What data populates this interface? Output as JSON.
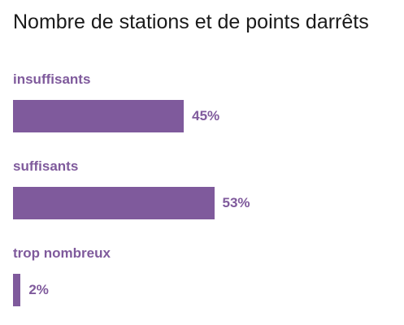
{
  "title": "Nombre de stations et de points darrêts",
  "colors": {
    "bar": "#7f5a9c",
    "label": "#7f5a9c",
    "value": "#7f5a9c",
    "title": "#1a1a1a"
  },
  "chart_data": {
    "type": "bar",
    "orientation": "horizontal",
    "title": "Nombre de stations et de points darrêts",
    "categories": [
      "insuffisants",
      "suffisants",
      "trop nombreux"
    ],
    "values": [
      45,
      53,
      2
    ],
    "value_labels": [
      "45%",
      "53%",
      "2%"
    ],
    "unit": "%",
    "xlim": [
      0,
      100
    ],
    "grid": false,
    "legend": "none"
  }
}
